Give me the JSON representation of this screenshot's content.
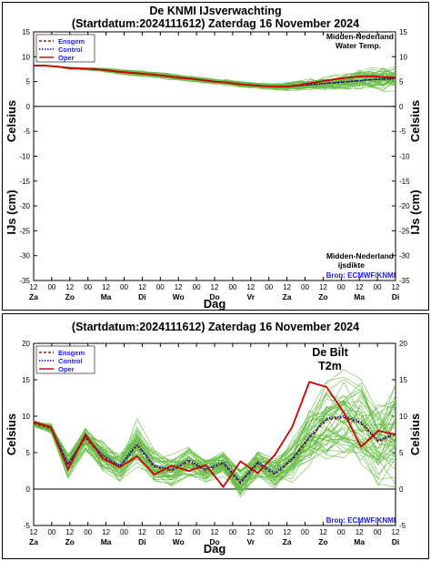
{
  "chart_data": [
    {
      "type": "line",
      "title": "De KNMI IJsverwachting",
      "subtitle": "(Startdatum:2024111612)  Zaterdag 16 November 2024",
      "ylabel_left": "IJs (cm)",
      "ylabel_right": "IJs (cm)",
      "ylabel_left_top": "Celsius",
      "ylabel_right_top": "Celsius",
      "xlabel": "Dag",
      "ylim": [
        -35,
        15
      ],
      "yticks": [
        15,
        10,
        5,
        0,
        -5,
        -10,
        -15,
        -20,
        -25,
        -30,
        -35
      ],
      "hour_ticks": [
        "12",
        "00",
        "12",
        "00",
        "12",
        "00",
        "12",
        "00",
        "12",
        "00",
        "12",
        "00",
        "12",
        "00",
        "12",
        "00",
        "12",
        "00",
        "12",
        "00",
        "12"
      ],
      "day_labels": [
        "Za",
        "Zo",
        "Ma",
        "Di",
        "Wo",
        "Do",
        "Vr",
        "Za",
        "Zo",
        "Ma",
        "Di"
      ],
      "annotation_top": [
        "Midden-Nederland",
        "Water Temp."
      ],
      "annotation_bottom": [
        "Midden-Nederland",
        "ijsdikte"
      ],
      "source": "Bron: ECMWF/KNMI",
      "legend": [
        "Ensgem",
        "Control",
        "Oper"
      ],
      "series": [
        {
          "name": "Ensgem",
          "color": "#8b2500",
          "style": "dashed",
          "values": [
            8.2,
            8.2,
            8.0,
            7.7,
            7.6,
            7.5,
            7.3,
            7.0,
            6.8,
            6.6,
            6.4,
            6.1,
            5.8,
            5.6,
            5.3,
            5.0,
            4.8,
            4.5,
            4.3,
            4.1,
            4.0,
            4.0,
            4.2,
            4.4,
            4.6,
            4.8,
            5.0,
            5.2,
            5.4,
            5.5,
            5.6
          ]
        },
        {
          "name": "Control",
          "color": "#0000cc",
          "style": "dotted",
          "values": [
            8.2,
            8.2,
            8.0,
            7.7,
            7.6,
            7.5,
            7.3,
            7.0,
            6.8,
            6.6,
            6.4,
            6.1,
            5.8,
            5.6,
            5.3,
            5.0,
            4.8,
            4.5,
            4.3,
            4.1,
            4.0,
            4.0,
            4.2,
            4.4,
            4.6,
            4.8,
            5.0,
            5.2,
            5.4,
            5.5,
            5.6
          ]
        },
        {
          "name": "Oper",
          "color": "#cc0000",
          "style": "solid",
          "values": [
            8.2,
            8.2,
            8.0,
            7.7,
            7.6,
            7.5,
            7.3,
            7.0,
            6.8,
            6.6,
            6.4,
            6.1,
            5.8,
            5.6,
            5.3,
            5.0,
            4.8,
            4.5,
            4.3,
            4.1,
            4.0,
            4.0,
            4.3,
            4.7,
            5.1,
            5.5,
            5.8,
            6.0,
            6.1,
            5.9,
            5.8
          ]
        }
      ],
      "ensemble": {
        "color": "#66bb44",
        "center": [
          8.2,
          8.2,
          8.0,
          7.7,
          7.6,
          7.5,
          7.3,
          7.0,
          6.8,
          6.6,
          6.4,
          6.1,
          5.8,
          5.6,
          5.3,
          5.0,
          4.8,
          4.5,
          4.3,
          4.1,
          4.0,
          4.0,
          4.2,
          4.4,
          4.6,
          4.8,
          5.0,
          5.2,
          5.4,
          5.5,
          5.6
        ],
        "spread": [
          0.1,
          0.1,
          0.1,
          0.2,
          0.2,
          0.3,
          0.4,
          0.4,
          0.5,
          0.5,
          0.5,
          0.5,
          0.5,
          0.5,
          0.5,
          0.5,
          0.5,
          0.5,
          0.5,
          0.5,
          0.6,
          0.7,
          0.8,
          1.0,
          1.2,
          1.4,
          1.6,
          1.8,
          2.0,
          2.2,
          2.4
        ],
        "members": 50
      }
    },
    {
      "type": "line",
      "subtitle": "(Startdatum:2024111612)  Zaterdag 16 November 2024",
      "ylabel_left": "Celsius",
      "ylabel_right": "Celsius",
      "xlabel": "Dag",
      "ylim": [
        -5,
        20
      ],
      "yticks": [
        20,
        15,
        10,
        5,
        0,
        -5
      ],
      "hour_ticks": [
        "12",
        "00",
        "12",
        "00",
        "12",
        "00",
        "12",
        "00",
        "12",
        "00",
        "12",
        "00",
        "12",
        "00",
        "12",
        "00",
        "12",
        "00",
        "12",
        "00",
        "12"
      ],
      "day_labels": [
        "Za",
        "Zo",
        "Ma",
        "Di",
        "Wo",
        "Do",
        "Vr",
        "Za",
        "Zo",
        "Ma",
        "Di"
      ],
      "station": "De Bilt",
      "parameter": "T2m",
      "source": "Bron: ECMWF/KNMI",
      "legend": [
        "Ensgem",
        "Control",
        "Oper"
      ],
      "series": [
        {
          "name": "Ensgem",
          "color": "#8b2500",
          "style": "dashed",
          "values": [
            9.0,
            8.3,
            3.3,
            7.0,
            4.5,
            3.0,
            6.0,
            3.0,
            2.5,
            3.8,
            2.5,
            3.5,
            0.8,
            3.5,
            2.0,
            4.0,
            7.0,
            9.5,
            9.8,
            9.0,
            6.5,
            7.5
          ]
        },
        {
          "name": "Control",
          "color": "#0000cc",
          "style": "dotted",
          "values": [
            9.2,
            8.5,
            3.5,
            7.2,
            4.7,
            3.2,
            6.2,
            3.2,
            2.7,
            4.0,
            2.7,
            3.7,
            1.0,
            3.7,
            2.2,
            4.2,
            7.2,
            9.7,
            10.0,
            9.2,
            6.7,
            7.7
          ]
        },
        {
          "name": "Oper",
          "color": "#cc0000",
          "style": "solid",
          "values": [
            9.2,
            8.5,
            2.7,
            7.5,
            4.2,
            3.0,
            4.5,
            2.0,
            3.2,
            2.5,
            3.3,
            0.3,
            3.8,
            2.2,
            4.7,
            8.5,
            14.7,
            14.0,
            10.5,
            5.8,
            8.0,
            7.5
          ]
        }
      ],
      "ensemble": {
        "color": "#66bb44",
        "center": [
          9.0,
          8.3,
          3.3,
          7.0,
          4.5,
          3.0,
          6.0,
          3.0,
          2.5,
          3.8,
          2.5,
          3.5,
          0.8,
          3.5,
          2.0,
          4.0,
          7.0,
          9.5,
          9.8,
          9.0,
          6.5,
          7.5
        ],
        "spread": [
          0.4,
          0.6,
          1.5,
          1.5,
          1.8,
          1.8,
          3.2,
          2.0,
          1.8,
          1.8,
          1.5,
          1.5,
          1.8,
          1.6,
          1.8,
          2.5,
          4.0,
          5.0,
          5.5,
          5.5,
          5.5,
          6.0
        ],
        "members": 50
      }
    }
  ]
}
